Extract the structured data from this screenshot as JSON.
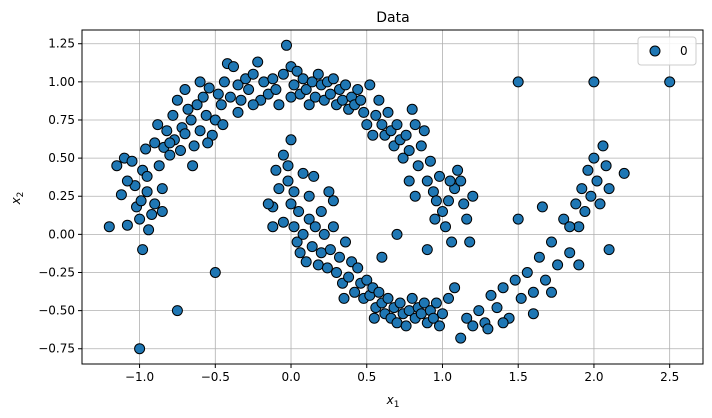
{
  "chart_data": {
    "type": "scatter",
    "title": "Data",
    "xlabel_base": "x",
    "xlabel_sub": "1",
    "ylabel_base": "x",
    "ylabel_sub": "2",
    "xlim": [
      -1.38,
      2.72
    ],
    "ylim": [
      -0.85,
      1.34
    ],
    "xticks": [
      -1.0,
      -0.5,
      0.0,
      0.5,
      1.0,
      1.5,
      2.0,
      2.5
    ],
    "xtick_labels": [
      "−1.0",
      "−0.5",
      "0.0",
      "0.5",
      "1.0",
      "1.5",
      "2.0",
      "2.5"
    ],
    "yticks": [
      -0.75,
      -0.5,
      -0.25,
      0.0,
      0.25,
      0.5,
      0.75,
      1.0,
      1.25
    ],
    "ytick_labels": [
      "−0.75",
      "−0.50",
      "−0.25",
      "0.00",
      "0.25",
      "0.50",
      "0.75",
      "1.00",
      "1.25"
    ],
    "grid": true,
    "legend_position": "top-right",
    "series": [
      {
        "name": "0",
        "color": "#1f77b4",
        "edge_color": "#000000",
        "points": [
          [
            -1.2,
            0.05
          ],
          [
            -1.15,
            0.45
          ],
          [
            -1.12,
            0.26
          ],
          [
            -1.1,
            0.5
          ],
          [
            -1.08,
            0.06
          ],
          [
            -1.05,
            0.48
          ],
          [
            -1.03,
            0.32
          ],
          [
            -1.02,
            0.18
          ],
          [
            -1.0,
            0.1
          ],
          [
            -0.99,
            0.22
          ],
          [
            -0.98,
            0.42
          ],
          [
            -0.96,
            0.56
          ],
          [
            -0.95,
            0.28
          ],
          [
            -0.94,
            0.03
          ],
          [
            -0.92,
            0.13
          ],
          [
            -0.9,
            0.6
          ],
          [
            -0.88,
            0.72
          ],
          [
            -0.87,
            0.45
          ],
          [
            -0.85,
            0.3
          ],
          [
            -0.84,
            0.57
          ],
          [
            -0.82,
            0.68
          ],
          [
            -0.8,
            0.52
          ],
          [
            -0.78,
            0.78
          ],
          [
            -0.77,
            0.62
          ],
          [
            -0.75,
            0.88
          ],
          [
            -0.73,
            0.55
          ],
          [
            -0.72,
            0.7
          ],
          [
            -0.7,
            0.66
          ],
          [
            -0.68,
            0.82
          ],
          [
            -0.66,
            0.75
          ],
          [
            -0.64,
            0.58
          ],
          [
            -0.62,
            0.85
          ],
          [
            -0.6,
            0.68
          ],
          [
            -0.58,
            0.9
          ],
          [
            -0.56,
            0.78
          ],
          [
            -0.54,
            0.96
          ],
          [
            -0.52,
            0.65
          ],
          [
            -0.5,
            0.75
          ],
          [
            -0.48,
            0.92
          ],
          [
            -0.46,
            0.85
          ],
          [
            -0.44,
            1.0
          ],
          [
            -0.42,
            1.12
          ],
          [
            -0.4,
            0.9
          ],
          [
            -0.38,
            1.1
          ],
          [
            -0.35,
            0.98
          ],
          [
            -0.33,
            0.88
          ],
          [
            -0.3,
            1.02
          ],
          [
            -0.28,
            0.95
          ],
          [
            -0.25,
            1.05
          ],
          [
            -0.22,
            1.13
          ],
          [
            -0.2,
            0.88
          ],
          [
            -0.18,
            1.0
          ],
          [
            -0.15,
            0.92
          ],
          [
            -0.12,
            1.02
          ],
          [
            -0.1,
            0.95
          ],
          [
            -0.08,
            0.85
          ],
          [
            -0.05,
            1.05
          ],
          [
            -0.03,
            1.24
          ],
          [
            0.0,
            1.1
          ],
          [
            0.0,
            0.9
          ],
          [
            0.02,
            0.98
          ],
          [
            0.04,
            1.07
          ],
          [
            0.06,
            0.92
          ],
          [
            0.08,
            1.02
          ],
          [
            0.1,
            0.95
          ],
          [
            0.12,
            0.85
          ],
          [
            0.14,
            1.0
          ],
          [
            0.16,
            0.9
          ],
          [
            0.18,
            1.05
          ],
          [
            0.2,
            0.98
          ],
          [
            0.22,
            0.88
          ],
          [
            0.24,
            1.0
          ],
          [
            0.26,
            0.92
          ],
          [
            0.28,
            1.02
          ],
          [
            0.3,
            0.85
          ],
          [
            0.32,
            0.95
          ],
          [
            0.34,
            0.88
          ],
          [
            0.36,
            0.98
          ],
          [
            0.38,
            0.82
          ],
          [
            0.4,
            0.9
          ],
          [
            0.42,
            0.85
          ],
          [
            0.44,
            0.95
          ],
          [
            0.46,
            0.88
          ],
          [
            0.48,
            0.8
          ],
          [
            0.5,
            0.72
          ],
          [
            0.52,
            0.98
          ],
          [
            0.54,
            0.65
          ],
          [
            0.56,
            0.78
          ],
          [
            0.58,
            0.88
          ],
          [
            0.6,
            0.72
          ],
          [
            0.62,
            0.65
          ],
          [
            0.64,
            0.8
          ],
          [
            0.66,
            0.68
          ],
          [
            0.68,
            0.58
          ],
          [
            0.7,
            0.72
          ],
          [
            0.72,
            0.62
          ],
          [
            0.74,
            0.5
          ],
          [
            0.76,
            0.65
          ],
          [
            0.78,
            0.55
          ],
          [
            0.8,
            0.82
          ],
          [
            0.82,
            0.72
          ],
          [
            0.84,
            0.45
          ],
          [
            0.86,
            0.58
          ],
          [
            0.88,
            0.68
          ],
          [
            0.9,
            0.35
          ],
          [
            0.92,
            0.48
          ],
          [
            0.94,
            0.28
          ],
          [
            0.96,
            0.22
          ],
          [
            0.98,
            0.38
          ],
          [
            1.0,
            0.15
          ],
          [
            1.02,
            0.05
          ],
          [
            1.04,
            0.22
          ],
          [
            1.06,
            -0.05
          ],
          [
            1.08,
            0.3
          ],
          [
            1.1,
            0.42
          ],
          [
            1.12,
            0.35
          ],
          [
            1.14,
            0.2
          ],
          [
            1.16,
            0.1
          ],
          [
            1.18,
            -0.05
          ],
          [
            -0.98,
            -0.1
          ],
          [
            -1.0,
            -0.75
          ],
          [
            -0.75,
            -0.5
          ],
          [
            -0.5,
            -0.25
          ],
          [
            1.5,
            1.0
          ],
          [
            2.0,
            1.0
          ],
          [
            2.5,
            1.0
          ],
          [
            1.5,
            0.1
          ],
          [
            -0.05,
            0.52
          ],
          [
            -0.02,
            0.35
          ],
          [
            0.0,
            0.2
          ],
          [
            -0.08,
            0.3
          ],
          [
            -0.12,
            0.18
          ],
          [
            0.02,
            0.05
          ],
          [
            0.04,
            -0.05
          ],
          [
            0.06,
            -0.12
          ],
          [
            0.08,
            0.0
          ],
          [
            0.1,
            -0.18
          ],
          [
            0.12,
            0.1
          ],
          [
            0.14,
            -0.08
          ],
          [
            0.16,
            0.05
          ],
          [
            0.18,
            -0.2
          ],
          [
            0.2,
            -0.12
          ],
          [
            0.22,
            0.0
          ],
          [
            0.24,
            -0.22
          ],
          [
            0.26,
            -0.1
          ],
          [
            0.28,
            0.05
          ],
          [
            0.3,
            -0.25
          ],
          [
            0.32,
            -0.15
          ],
          [
            0.34,
            -0.32
          ],
          [
            0.36,
            -0.05
          ],
          [
            0.38,
            -0.28
          ],
          [
            0.4,
            -0.18
          ],
          [
            0.42,
            -0.38
          ],
          [
            0.44,
            -0.22
          ],
          [
            0.46,
            -0.32
          ],
          [
            0.48,
            -0.42
          ],
          [
            0.5,
            -0.3
          ],
          [
            0.52,
            -0.4
          ],
          [
            0.54,
            -0.35
          ],
          [
            0.56,
            -0.48
          ],
          [
            0.58,
            -0.38
          ],
          [
            0.6,
            -0.45
          ],
          [
            0.62,
            -0.52
          ],
          [
            0.64,
            -0.42
          ],
          [
            0.66,
            -0.55
          ],
          [
            0.68,
            -0.48
          ],
          [
            0.7,
            -0.58
          ],
          [
            0.72,
            -0.45
          ],
          [
            0.74,
            -0.52
          ],
          [
            0.76,
            -0.6
          ],
          [
            0.78,
            -0.5
          ],
          [
            0.8,
            -0.42
          ],
          [
            0.82,
            -0.55
          ],
          [
            0.84,
            -0.48
          ],
          [
            0.86,
            -0.52
          ],
          [
            0.88,
            -0.45
          ],
          [
            0.9,
            -0.58
          ],
          [
            0.92,
            -0.5
          ],
          [
            0.94,
            -0.55
          ],
          [
            0.96,
            -0.45
          ],
          [
            0.98,
            -0.6
          ],
          [
            1.0,
            -0.52
          ],
          [
            1.04,
            -0.42
          ],
          [
            1.08,
            -0.35
          ],
          [
            1.12,
            -0.68
          ],
          [
            1.16,
            -0.55
          ],
          [
            1.2,
            -0.6
          ],
          [
            1.24,
            -0.5
          ],
          [
            1.28,
            -0.58
          ],
          [
            1.32,
            -0.4
          ],
          [
            1.36,
            -0.48
          ],
          [
            1.4,
            -0.35
          ],
          [
            1.44,
            -0.55
          ],
          [
            1.48,
            -0.3
          ],
          [
            1.52,
            -0.42
          ],
          [
            1.56,
            -0.25
          ],
          [
            1.6,
            -0.38
          ],
          [
            1.64,
            -0.15
          ],
          [
            1.68,
            -0.3
          ],
          [
            1.72,
            -0.05
          ],
          [
            1.76,
            -0.2
          ],
          [
            1.8,
            0.1
          ],
          [
            1.84,
            -0.12
          ],
          [
            1.88,
            0.2
          ],
          [
            1.9,
            0.05
          ],
          [
            1.92,
            0.3
          ],
          [
            1.94,
            0.15
          ],
          [
            1.96,
            0.42
          ],
          [
            1.98,
            0.25
          ],
          [
            2.0,
            0.5
          ],
          [
            2.02,
            0.35
          ],
          [
            2.04,
            0.2
          ],
          [
            2.06,
            0.58
          ],
          [
            2.08,
            0.45
          ],
          [
            2.1,
            0.3
          ],
          [
            2.1,
            -0.1
          ],
          [
            2.2,
            0.4
          ],
          [
            1.66,
            0.18
          ],
          [
            1.84,
            0.05
          ],
          [
            1.9,
            -0.2
          ],
          [
            1.72,
            -0.38
          ],
          [
            1.6,
            -0.52
          ],
          [
            1.4,
            -0.58
          ],
          [
            1.3,
            -0.62
          ],
          [
            0.9,
            -0.1
          ],
          [
            0.7,
            0.0
          ],
          [
            0.6,
            -0.15
          ],
          [
            0.55,
            -0.55
          ],
          [
            0.35,
            -0.42
          ],
          [
            0.25,
            0.28
          ],
          [
            0.15,
            0.38
          ],
          [
            0.08,
            0.4
          ],
          [
            -0.02,
            0.45
          ],
          [
            0.02,
            0.28
          ],
          [
            0.12,
            0.25
          ],
          [
            0.2,
            0.15
          ],
          [
            0.28,
            0.22
          ],
          [
            -0.05,
            0.08
          ],
          [
            -0.1,
            0.42
          ],
          [
            0.0,
            0.62
          ],
          [
            -0.15,
            0.2
          ],
          [
            -0.12,
            0.05
          ],
          [
            0.05,
            0.15
          ],
          [
            -0.6,
            1.0
          ],
          [
            -0.7,
            0.95
          ],
          [
            -0.8,
            0.6
          ],
          [
            -0.95,
            0.38
          ],
          [
            -0.85,
            0.15
          ],
          [
            -0.9,
            0.2
          ],
          [
            -1.08,
            0.35
          ],
          [
            -0.65,
            0.45
          ],
          [
            -0.55,
            0.6
          ],
          [
            -0.45,
            0.72
          ],
          [
            -0.35,
            0.8
          ],
          [
            -0.25,
            0.85
          ],
          [
            0.78,
            0.35
          ],
          [
            0.82,
            0.25
          ],
          [
            0.95,
            0.1
          ],
          [
            1.05,
            0.35
          ],
          [
            1.2,
            0.25
          ]
        ]
      }
    ]
  }
}
